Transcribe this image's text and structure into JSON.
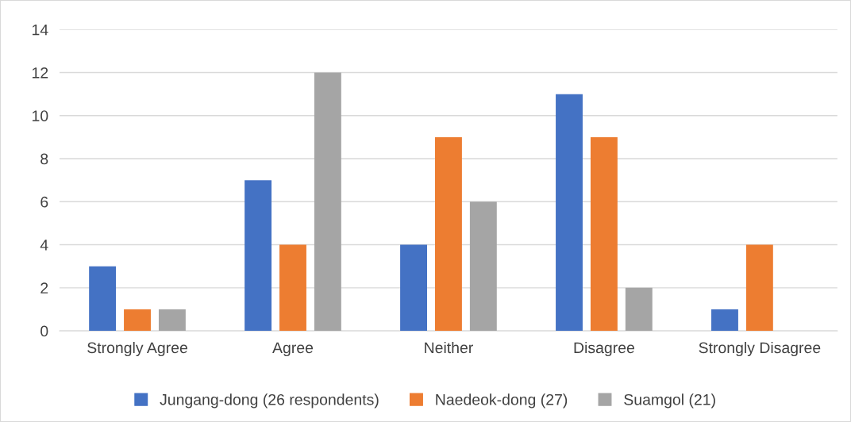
{
  "chart_data": {
    "type": "bar",
    "categories": [
      "Strongly Agree",
      "Agree",
      "Neither",
      "Disagree",
      "Strongly Disagree"
    ],
    "series": [
      {
        "name": "Jungang-dong (26 respondents)",
        "color": "#4472c4",
        "values": [
          3,
          7,
          4,
          11,
          1
        ]
      },
      {
        "name": "Naedeok-dong (27)",
        "color": "#ed7d31",
        "values": [
          1,
          4,
          9,
          9,
          4
        ]
      },
      {
        "name": "Suamgol (21)",
        "color": "#a5a5a5",
        "values": [
          1,
          12,
          6,
          2,
          0
        ]
      }
    ],
    "ylim": [
      0,
      14
    ],
    "yticks": [
      0,
      2,
      4,
      6,
      8,
      10,
      12,
      14
    ],
    "grid": "y",
    "legend": "bottom"
  }
}
